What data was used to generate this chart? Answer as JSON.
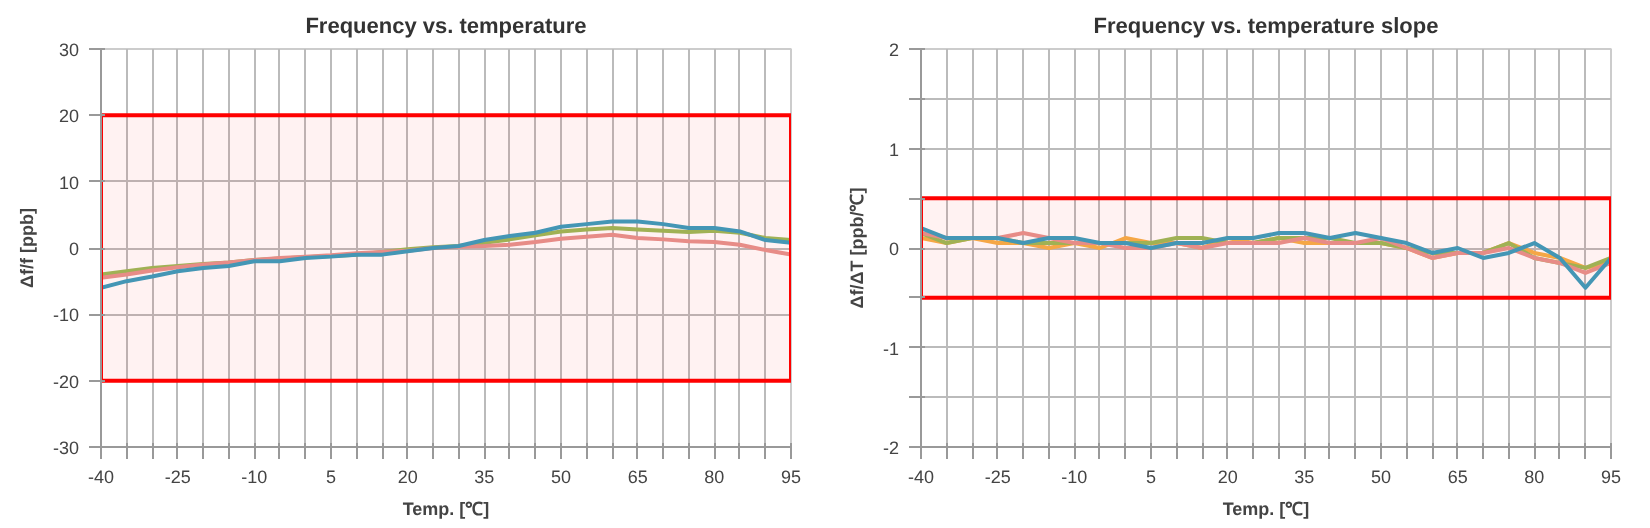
{
  "chart_data": [
    {
      "type": "line",
      "title": "Frequency vs. temperature",
      "xlabel": "Temp. [℃]",
      "ylabel": "Δf/f [ppb]",
      "x": [
        -40,
        -35,
        -30,
        -25,
        -20,
        -15,
        -10,
        -5,
        0,
        5,
        10,
        15,
        20,
        25,
        30,
        35,
        40,
        45,
        50,
        55,
        60,
        65,
        70,
        75,
        80,
        85,
        90,
        95
      ],
      "xlim": [
        -40,
        95
      ],
      "xticks": [
        -40,
        {
          "value": -35,
          "label": null
        },
        {
          "value": -30,
          "label": null
        },
        -25,
        {
          "value": -20,
          "label": null
        },
        {
          "value": -15,
          "label": null
        },
        -10,
        {
          "value": -5,
          "label": null
        },
        {
          "value": 0,
          "label": null
        },
        5,
        {
          "value": 10,
          "label": null
        },
        {
          "value": 15,
          "label": null
        },
        20,
        {
          "value": 25,
          "label": null
        },
        {
          "value": 30,
          "label": null
        },
        35,
        {
          "value": 40,
          "label": null
        },
        {
          "value": 45,
          "label": null
        },
        50,
        {
          "value": 55,
          "label": null
        },
        {
          "value": 60,
          "label": null
        },
        65,
        {
          "value": 70,
          "label": null
        },
        {
          "value": 75,
          "label": null
        },
        80,
        {
          "value": 85,
          "label": null
        },
        {
          "value": 90,
          "label": null
        },
        95
      ],
      "ylim": [
        -30,
        30
      ],
      "yticks": [
        -30,
        -20,
        -10,
        0,
        10,
        20,
        30
      ],
      "grid": true,
      "bands": [
        {
          "axis": "y",
          "from": -20,
          "to": 20,
          "color": "#ff0000"
        }
      ],
      "series": [
        {
          "color": "#9bbb59",
          "values": [
            -4,
            -3.5,
            -3,
            -2.7,
            -2.4,
            -2.2,
            -1.8,
            -1.6,
            -1.4,
            -1.2,
            -1,
            -0.6,
            -0.2,
            0.1,
            0.3,
            0.8,
            1.3,
            1.9,
            2.5,
            2.8,
            3,
            2.8,
            2.6,
            2.4,
            2.6,
            2.3,
            1.5,
            1.2
          ]
        },
        {
          "color": "#e6948f",
          "values": [
            -4.5,
            -4,
            -3.4,
            -2.9,
            -2.5,
            -2.2,
            -1.8,
            -1.5,
            -1.3,
            -1.1,
            -0.8,
            -0.6,
            -0.4,
            0,
            0.2,
            0.3,
            0.5,
            0.9,
            1.4,
            1.7,
            2,
            1.5,
            1.3,
            1,
            0.9,
            0.5,
            -0.3,
            -1
          ]
        },
        {
          "color": "#3a9fbf",
          "values": [
            -6,
            -5,
            -4.3,
            -3.5,
            -3,
            -2.7,
            -2,
            -2,
            -1.5,
            -1.3,
            -1,
            -1,
            -0.5,
            0,
            0.3,
            1.2,
            1.8,
            2.3,
            3.2,
            3.6,
            4,
            4,
            3.6,
            3,
            3,
            2.5,
            1.2,
            0.8
          ]
        }
      ]
    },
    {
      "type": "line",
      "title": "Frequency vs. temperature slope",
      "xlabel": "Temp. [℃]",
      "ylabel": "Δf/ΔT [ppb/℃]",
      "x": [
        -40,
        -35,
        -30,
        -25,
        -20,
        -15,
        -10,
        -5,
        0,
        5,
        10,
        15,
        20,
        25,
        30,
        35,
        40,
        45,
        50,
        55,
        60,
        65,
        70,
        75,
        80,
        85,
        90,
        95
      ],
      "xlim": [
        -40,
        95
      ],
      "xticks": [
        -40,
        {
          "value": -35,
          "label": null
        },
        {
          "value": -30,
          "label": null
        },
        -25,
        {
          "value": -20,
          "label": null
        },
        {
          "value": -15,
          "label": null
        },
        -10,
        {
          "value": -5,
          "label": null
        },
        {
          "value": 0,
          "label": null
        },
        5,
        {
          "value": 10,
          "label": null
        },
        {
          "value": 15,
          "label": null
        },
        20,
        {
          "value": 25,
          "label": null
        },
        {
          "value": 30,
          "label": null
        },
        35,
        {
          "value": 40,
          "label": null
        },
        {
          "value": 45,
          "label": null
        },
        50,
        {
          "value": 55,
          "label": null
        },
        {
          "value": 60,
          "label": null
        },
        65,
        {
          "value": 70,
          "label": null
        },
        {
          "value": 75,
          "label": null
        },
        80,
        {
          "value": 85,
          "label": null
        },
        {
          "value": 90,
          "label": null
        },
        95
      ],
      "ylim": [
        -2,
        2
      ],
      "yticks": [
        -2,
        {
          "value": -1.5,
          "label": null
        },
        -1,
        {
          "value": -0.5,
          "label": null
        },
        0,
        {
          "value": 0.5,
          "label": null
        },
        1,
        {
          "value": 1.5,
          "label": null
        },
        2
      ],
      "grid": true,
      "bands": [
        {
          "axis": "y",
          "from": -0.5,
          "to": 0.5,
          "color": "#ff0000"
        }
      ],
      "series": [
        {
          "color": "#f5b04a",
          "values": [
            0.1,
            0.05,
            0.1,
            0.05,
            0.05,
            0.0,
            0.05,
            0.0,
            0.1,
            0.05,
            0.05,
            0.0,
            0.1,
            0.05,
            0.1,
            0.05,
            0.05,
            0.05,
            0.05,
            0.0,
            -0.1,
            -0.05,
            -0.05,
            0.05,
            -0.05,
            -0.1,
            -0.2,
            -0.15
          ]
        },
        {
          "color": "#9bbb59",
          "values": [
            0.15,
            0.05,
            0.1,
            0.1,
            0.05,
            0.05,
            0.05,
            0.05,
            0.05,
            0.05,
            0.1,
            0.1,
            0.05,
            0.05,
            0.1,
            0.1,
            0.1,
            0.05,
            0.05,
            0.0,
            -0.05,
            -0.05,
            -0.05,
            0.05,
            -0.1,
            -0.15,
            -0.2,
            -0.1
          ]
        },
        {
          "color": "#e6948f",
          "values": [
            0.15,
            0.1,
            0.1,
            0.1,
            0.15,
            0.1,
            0.05,
            0.05,
            0.0,
            0.0,
            0.05,
            0.0,
            0.05,
            0.05,
            0.05,
            0.1,
            0.05,
            0.05,
            0.1,
            0.0,
            -0.1,
            -0.05,
            -0.05,
            0.0,
            -0.1,
            -0.15,
            -0.25,
            -0.15
          ]
        },
        {
          "color": "#3a9fbf",
          "values": [
            0.2,
            0.1,
            0.1,
            0.1,
            0.05,
            0.1,
            0.1,
            0.05,
            0.05,
            0.0,
            0.05,
            0.05,
            0.1,
            0.1,
            0.15,
            0.15,
            0.1,
            0.15,
            0.1,
            0.05,
            -0.05,
            0.0,
            -0.1,
            -0.05,
            0.05,
            -0.1,
            -0.4,
            -0.1
          ]
        }
      ]
    }
  ]
}
